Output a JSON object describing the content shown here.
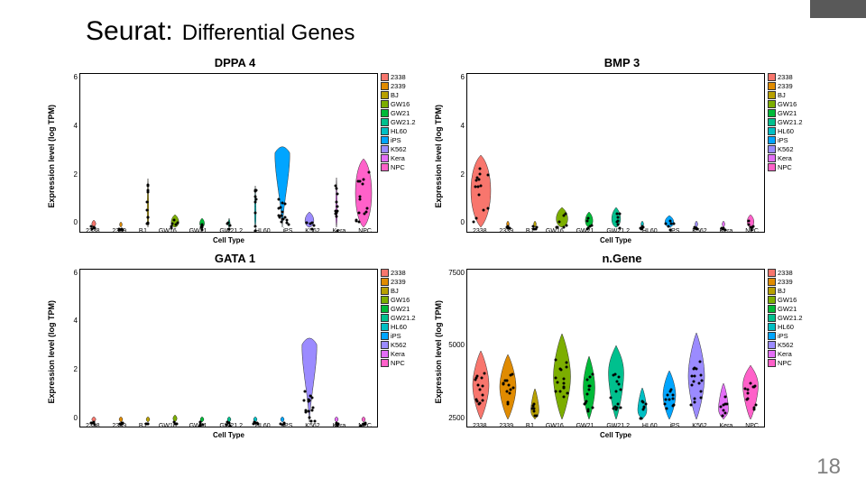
{
  "header": {
    "big": "Seurat:",
    "small": "Differential Genes"
  },
  "page_number": "18",
  "global": {
    "xlabel": "Cell Type",
    "ylabel": "Expression level (log TPM)",
    "ylabel_ngene": "Expression level (log TPM)",
    "categories": [
      "2338",
      "2339",
      "BJ",
      "GW16",
      "GW21",
      "GW21.2",
      "HL60",
      "iPS",
      "K562",
      "Kera",
      "NPC"
    ],
    "colors": [
      "#f8766d",
      "#e08b00",
      "#b8a000",
      "#7cae00",
      "#00ba38",
      "#00c08e",
      "#00bfc4",
      "#00a5ff",
      "#9b8bff",
      "#e36ef6",
      "#ff61c9"
    ],
    "bg": "#ffffff",
    "border": "#000000",
    "point_color": "#000000",
    "point_size": 3
  },
  "panels": [
    {
      "title": "DPPA 4",
      "ylim": [
        0,
        6.5
      ],
      "yticks": [
        "6",
        "4",
        "2",
        "0"
      ],
      "violins": [
        {
          "x": 0,
          "width": 9,
          "height": 8,
          "shape": "flat"
        },
        {
          "x": 1,
          "width": 6,
          "height": 6,
          "shape": "flat"
        },
        {
          "x": 2,
          "width": 3,
          "height": 54,
          "shape": "thin"
        },
        {
          "x": 3,
          "width": 11,
          "height": 14,
          "shape": "low"
        },
        {
          "x": 4,
          "width": 7,
          "height": 10,
          "shape": "low"
        },
        {
          "x": 5,
          "width": 4,
          "height": 10,
          "shape": "thin"
        },
        {
          "x": 6,
          "width": 3,
          "height": 46,
          "shape": "thin"
        },
        {
          "x": 7,
          "width": 18,
          "height": 94,
          "shape": "top"
        },
        {
          "x": 8,
          "width": 13,
          "height": 17,
          "shape": "low"
        },
        {
          "x": 9,
          "width": 3,
          "height": 55,
          "shape": "thin"
        },
        {
          "x": 10,
          "width": 24,
          "height": 76,
          "shape": "wide"
        }
      ]
    },
    {
      "title": "BMP 3",
      "ylim": [
        0,
        6.5
      ],
      "yticks": [
        "6",
        "4",
        "2",
        "0"
      ],
      "violins": [
        {
          "x": 0,
          "width": 30,
          "height": 80,
          "shape": "tall"
        },
        {
          "x": 1,
          "width": 6,
          "height": 7,
          "shape": "flat"
        },
        {
          "x": 2,
          "width": 6,
          "height": 7,
          "shape": "flat"
        },
        {
          "x": 3,
          "width": 17,
          "height": 22,
          "shape": "low"
        },
        {
          "x": 4,
          "width": 11,
          "height": 17,
          "shape": "low"
        },
        {
          "x": 5,
          "width": 13,
          "height": 22,
          "shape": "low"
        },
        {
          "x": 6,
          "width": 6,
          "height": 7,
          "shape": "flat"
        },
        {
          "x": 7,
          "width": 13,
          "height": 13,
          "shape": "low"
        },
        {
          "x": 8,
          "width": 6,
          "height": 7,
          "shape": "flat"
        },
        {
          "x": 9,
          "width": 6,
          "height": 7,
          "shape": "flat"
        },
        {
          "x": 10,
          "width": 10,
          "height": 14,
          "shape": "low"
        }
      ]
    },
    {
      "title": "GATA 1",
      "ylim": [
        0,
        6.5
      ],
      "yticks": [
        "6",
        "4",
        "2",
        "0"
      ],
      "violins": [
        {
          "x": 0,
          "width": 9,
          "height": 6,
          "shape": "flat"
        },
        {
          "x": 1,
          "width": 8,
          "height": 6,
          "shape": "flat"
        },
        {
          "x": 2,
          "width": 8,
          "height": 6,
          "shape": "flat"
        },
        {
          "x": 3,
          "width": 9,
          "height": 8,
          "shape": "flat"
        },
        {
          "x": 4,
          "width": 8,
          "height": 6,
          "shape": "flat"
        },
        {
          "x": 5,
          "width": 8,
          "height": 6,
          "shape": "flat"
        },
        {
          "x": 6,
          "width": 8,
          "height": 6,
          "shape": "flat"
        },
        {
          "x": 7,
          "width": 8,
          "height": 6,
          "shape": "flat"
        },
        {
          "x": 8,
          "width": 18,
          "height": 98,
          "shape": "top"
        },
        {
          "x": 9,
          "width": 8,
          "height": 6,
          "shape": "flat"
        },
        {
          "x": 10,
          "width": 8,
          "height": 6,
          "shape": "flat"
        }
      ]
    },
    {
      "title": "n.Gene",
      "ylim": [
        2000,
        8500
      ],
      "yticks": [
        "7500",
        "5000",
        "2500"
      ],
      "violins": [
        {
          "x": 0,
          "width": 18,
          "height": 76,
          "shape": "mid"
        },
        {
          "x": 1,
          "width": 18,
          "height": 72,
          "shape": "mid"
        },
        {
          "x": 2,
          "width": 9,
          "height": 34,
          "shape": "lowmid"
        },
        {
          "x": 3,
          "width": 19,
          "height": 95,
          "shape": "tallmid"
        },
        {
          "x": 4,
          "width": 13,
          "height": 70,
          "shape": "mid"
        },
        {
          "x": 5,
          "width": 17,
          "height": 82,
          "shape": "highmid"
        },
        {
          "x": 6,
          "width": 10,
          "height": 35,
          "shape": "lowmid"
        },
        {
          "x": 7,
          "width": 14,
          "height": 54,
          "shape": "mid"
        },
        {
          "x": 8,
          "width": 18,
          "height": 96,
          "shape": "tallmid"
        },
        {
          "x": 9,
          "width": 11,
          "height": 40,
          "shape": "lowmid"
        },
        {
          "x": 10,
          "width": 17,
          "height": 60,
          "shape": "highmid"
        }
      ]
    }
  ]
}
